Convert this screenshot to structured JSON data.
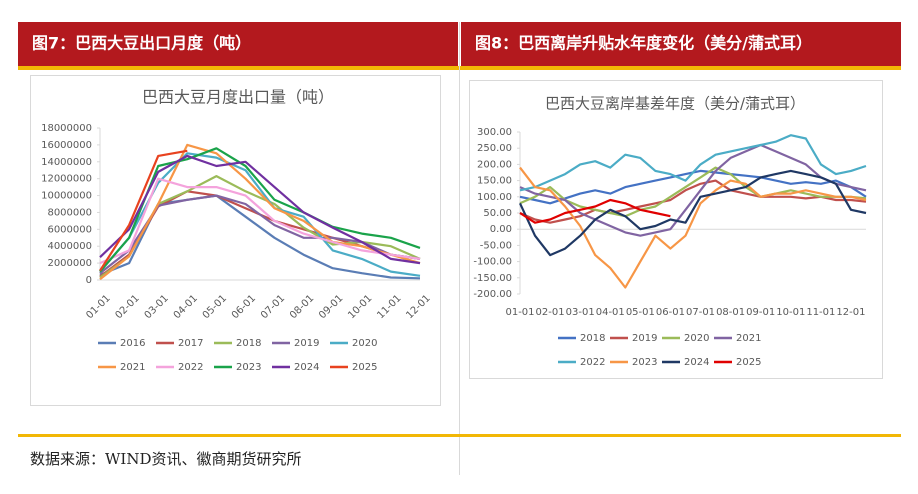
{
  "header": {
    "left_title": "图7：巴西大豆出口月度（吨）",
    "right_title": "图8：巴西离岸升贴水年度变化（美分/蒲式耳）"
  },
  "source": "数据来源：WIND资讯、徽商期货研究所",
  "chart_data": [
    {
      "type": "line",
      "title": "巴西大豆月度出口量（吨）",
      "categories": [
        "01-01",
        "02-01",
        "03-01",
        "04-01",
        "05-01",
        "06-01",
        "07-01",
        "08-01",
        "09-01",
        "10-01",
        "11-01",
        "12-01"
      ],
      "ylim": [
        0,
        18000000
      ],
      "yticks": [
        0,
        2000000,
        4000000,
        6000000,
        8000000,
        10000000,
        12000000,
        14000000,
        16000000,
        18000000
      ],
      "grid": false,
      "legend": "bottom",
      "x_label_rotation": -45,
      "series": [
        {
          "name": "2016",
          "color": "#5a7db5",
          "values": [
            600000,
            2000000,
            9000000,
            9500000,
            10000000,
            7500000,
            5000000,
            3000000,
            1400000,
            800000,
            300000,
            200000
          ]
        },
        {
          "name": "2017",
          "color": "#c0504d",
          "values": [
            400000,
            3000000,
            8700000,
            10500000,
            10000000,
            8500000,
            7000000,
            6000000,
            5000000,
            4000000,
            3000000,
            2500000
          ]
        },
        {
          "name": "2018",
          "color": "#9bbb59",
          "values": [
            300000,
            2800000,
            9000000,
            10500000,
            12300000,
            10500000,
            9000000,
            6200000,
            4200000,
            4500000,
            4000000,
            2500000
          ]
        },
        {
          "name": "2019",
          "color": "#8064a2",
          "values": [
            800000,
            3500000,
            8800000,
            9500000,
            10000000,
            9000000,
            6500000,
            5000000,
            5000000,
            4500000,
            3000000,
            2500000
          ]
        },
        {
          "name": "2020",
          "color": "#4bacc6",
          "values": [
            1000000,
            5000000,
            11500000,
            15000000,
            14500000,
            13000000,
            8500000,
            7500000,
            3500000,
            2500000,
            1000000,
            500000
          ]
        },
        {
          "name": "2021",
          "color": "#f79646",
          "values": [
            100000,
            2800000,
            9000000,
            16000000,
            15000000,
            12000000,
            8500000,
            7000000,
            4500000,
            4000000,
            3000000,
            2000000
          ]
        },
        {
          "name": "2022",
          "color": "#f4a3dc",
          "values": [
            2000000,
            3500000,
            12000000,
            11000000,
            11000000,
            10000000,
            7000000,
            5500000,
            4500000,
            3500000,
            3000000,
            2500000
          ]
        },
        {
          "name": "2023",
          "color": "#1aa34a",
          "values": [
            1000000,
            5000000,
            13500000,
            14300000,
            15600000,
            13500000,
            9500000,
            8000000,
            6300000,
            5500000,
            5000000,
            3800000
          ]
        },
        {
          "name": "2024",
          "color": "#7030a0",
          "values": [
            2700000,
            6000000,
            12800000,
            14700000,
            13500000,
            14000000,
            11000000,
            8000000,
            6200000,
            4500000,
            2500000,
            2000000
          ]
        },
        {
          "name": "2025",
          "color": "#e8421f",
          "values": [
            1100000,
            6500000,
            14700000,
            15300000,
            null,
            null,
            null,
            null,
            null,
            null,
            null,
            null
          ]
        }
      ]
    },
    {
      "type": "line",
      "title": "巴西大豆离岸基差年度（美分/蒲式耳）",
      "categories": [
        "01-01",
        null,
        "02-01",
        null,
        "03-01",
        null,
        "04-01",
        null,
        "05-01",
        null,
        "06-01",
        null,
        "07-01",
        null,
        "08-01",
        null,
        "09-01",
        null,
        "10-01",
        null,
        "11-01",
        null,
        "12-01",
        null
      ],
      "ylim": [
        -200,
        300
      ],
      "yticks": [
        {
          "value": 300,
          "label": "300.00"
        },
        {
          "value": 250,
          "label": "250.00"
        },
        {
          "value": 200,
          "label": "200.00"
        },
        {
          "value": 150,
          "label": "150.00"
        },
        {
          "value": 100,
          "label": "100.00"
        },
        {
          "value": 50,
          "label": "50.00"
        },
        {
          "value": 0,
          "label": "0.00"
        },
        {
          "value": -50,
          "label": "-50.00"
        },
        {
          "value": -100,
          "label": "-100.00"
        },
        {
          "value": -150,
          "label": "-150.00"
        },
        {
          "value": -200,
          "label": "-200.00"
        }
      ],
      "grid": false,
      "legend": "bottom",
      "x_label_rotation": 0,
      "series": [
        {
          "name": "2018",
          "color": "#4472c4",
          "values": [
            100,
            90,
            80,
            95,
            110,
            120,
            110,
            130,
            140,
            150,
            160,
            170,
            180,
            175,
            170,
            165,
            160,
            150,
            140,
            145,
            140,
            150,
            130,
            100
          ]
        },
        {
          "name": "2019",
          "color": "#c0504d",
          "values": [
            50,
            30,
            20,
            30,
            40,
            60,
            50,
            60,
            70,
            80,
            90,
            120,
            140,
            150,
            120,
            110,
            100,
            100,
            100,
            95,
            100,
            90,
            90,
            85
          ]
        },
        {
          "name": "2020",
          "color": "#9bbb59",
          "values": [
            80,
            100,
            130,
            90,
            70,
            60,
            50,
            40,
            60,
            70,
            100,
            130,
            160,
            190,
            170,
            130,
            100,
            110,
            120,
            110,
            100,
            100,
            100,
            95
          ]
        },
        {
          "name": "2021",
          "color": "#8064a2",
          "values": [
            130,
            110,
            100,
            90,
            50,
            30,
            10,
            -10,
            -20,
            -10,
            0,
            60,
            120,
            180,
            220,
            240,
            260,
            240,
            220,
            200,
            160,
            140,
            130,
            120
          ]
        },
        {
          "name": "2022",
          "color": "#4bacc6",
          "values": [
            120,
            130,
            150,
            170,
            200,
            210,
            190,
            230,
            220,
            180,
            170,
            150,
            200,
            230,
            240,
            250,
            260,
            270,
            290,
            280,
            200,
            170,
            180,
            195
          ]
        },
        {
          "name": "2023",
          "color": "#f79646",
          "values": [
            190,
            130,
            120,
            70,
            10,
            -80,
            -120,
            -180,
            -100,
            -20,
            -60,
            -20,
            80,
            120,
            150,
            140,
            100,
            110,
            110,
            120,
            110,
            100,
            100,
            90
          ]
        },
        {
          "name": "2024",
          "color": "#1f3864",
          "values": [
            80,
            -20,
            -80,
            -60,
            -20,
            30,
            60,
            40,
            0,
            10,
            30,
            20,
            100,
            110,
            120,
            130,
            160,
            170,
            180,
            170,
            160,
            140,
            60,
            50
          ]
        },
        {
          "name": "2025",
          "color": "#e00000",
          "values": [
            50,
            20,
            30,
            50,
            60,
            70,
            90,
            80,
            60,
            50,
            40,
            null,
            null,
            null,
            null,
            null,
            null,
            null,
            null,
            null,
            null,
            null,
            null,
            null
          ]
        }
      ]
    }
  ]
}
